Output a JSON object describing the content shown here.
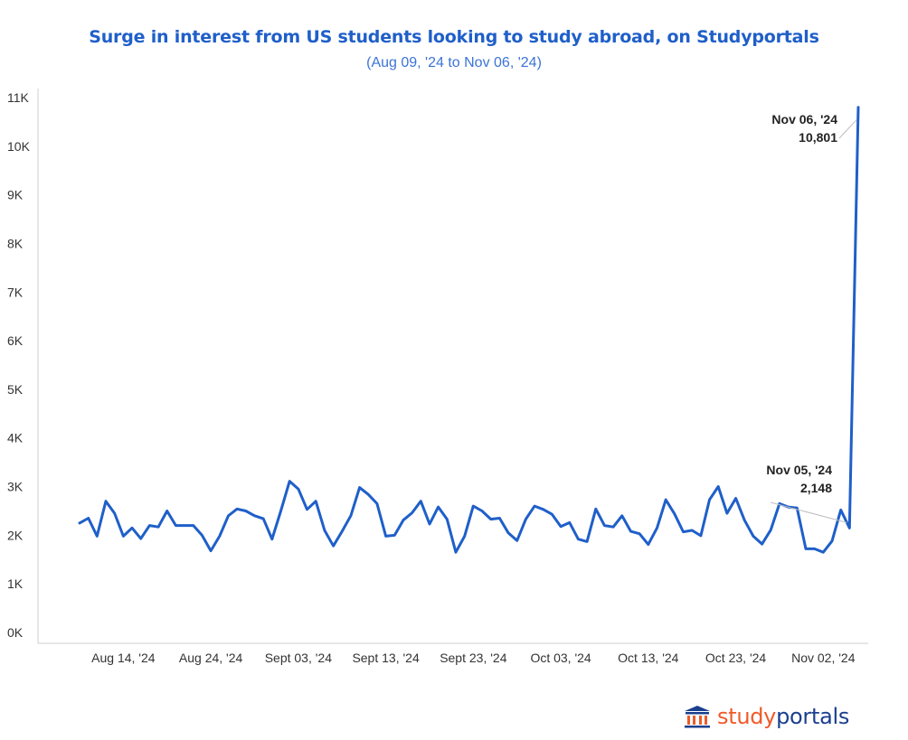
{
  "title": "Surge in interest from US students looking to study abroad, on Studyportals",
  "subtitle": "(Aug 09, '24 to Nov 06, '24)",
  "colors": {
    "title": "#1f5fc9",
    "line": "#1f5fc9",
    "logo_study": "#f05a28",
    "logo_portals": "#1b3f8f"
  },
  "logo": {
    "icon": "building-columns-icon",
    "text_part1": "study",
    "text_part2": "portals"
  },
  "chart_data": {
    "type": "line",
    "title": "Surge in interest from US students looking to study abroad, on Studyportals",
    "subtitle": "(Aug 09, '24 to Nov 06, '24)",
    "x_start": "2024-08-09",
    "x_end": "2024-11-06",
    "ylim": [
      0,
      11000
    ],
    "y_ticks": [
      0,
      1000,
      2000,
      3000,
      4000,
      5000,
      6000,
      7000,
      8000,
      9000,
      10000,
      11000
    ],
    "y_tick_labels": [
      "0K",
      "1K",
      "2K",
      "3K",
      "4K",
      "5K",
      "6K",
      "7K",
      "8K",
      "9K",
      "10K",
      "11K"
    ],
    "x_ticks": [
      {
        "date": "2024-08-14",
        "label": "Aug 14, '24"
      },
      {
        "date": "2024-08-24",
        "label": "Aug 24, '24"
      },
      {
        "date": "2024-09-03",
        "label": "Sept 03, '24"
      },
      {
        "date": "2024-09-13",
        "label": "Sept 13, '24"
      },
      {
        "date": "2024-09-23",
        "label": "Sept 23, '24"
      },
      {
        "date": "2024-10-03",
        "label": "Oct 03, '24"
      },
      {
        "date": "2024-10-13",
        "label": "Oct 13, '24"
      },
      {
        "date": "2024-10-23",
        "label": "Oct 23, '24"
      },
      {
        "date": "2024-11-02",
        "label": "Nov 02, '24"
      }
    ],
    "grid": false,
    "series": [
      {
        "x": [
          "2024-08-09",
          "2024-08-10",
          "2024-08-11",
          "2024-08-12",
          "2024-08-13",
          "2024-08-14",
          "2024-08-15",
          "2024-08-16",
          "2024-08-17",
          "2024-08-18",
          "2024-08-19",
          "2024-08-20",
          "2024-08-21",
          "2024-08-22",
          "2024-08-23",
          "2024-08-24",
          "2024-08-25",
          "2024-08-26",
          "2024-08-27",
          "2024-08-28",
          "2024-08-29",
          "2024-08-30",
          "2024-08-31",
          "2024-09-01",
          "2024-09-02",
          "2024-09-03",
          "2024-09-04",
          "2024-09-05",
          "2024-09-06",
          "2024-09-07",
          "2024-09-08",
          "2024-09-09",
          "2024-09-10",
          "2024-09-11",
          "2024-09-12",
          "2024-09-13",
          "2024-09-14",
          "2024-09-15",
          "2024-09-16",
          "2024-09-17",
          "2024-09-18",
          "2024-09-19",
          "2024-09-20",
          "2024-09-21",
          "2024-09-22",
          "2024-09-23",
          "2024-09-24",
          "2024-09-25",
          "2024-09-26",
          "2024-09-27",
          "2024-09-28",
          "2024-09-29",
          "2024-09-30",
          "2024-10-01",
          "2024-10-02",
          "2024-10-03",
          "2024-10-04",
          "2024-10-05",
          "2024-10-06",
          "2024-10-07",
          "2024-10-08",
          "2024-10-09",
          "2024-10-10",
          "2024-10-11",
          "2024-10-12",
          "2024-10-13",
          "2024-10-14",
          "2024-10-15",
          "2024-10-16",
          "2024-10-17",
          "2024-10-18",
          "2024-10-19",
          "2024-10-20",
          "2024-10-21",
          "2024-10-22",
          "2024-10-23",
          "2024-10-24",
          "2024-10-25",
          "2024-10-26",
          "2024-10-27",
          "2024-10-28",
          "2024-10-29",
          "2024-10-30",
          "2024-10-31",
          "2024-11-01",
          "2024-11-02",
          "2024-11-03",
          "2024-11-04",
          "2024-11-05",
          "2024-11-06"
        ],
        "values": [
          2250,
          2350,
          1980,
          2700,
          2450,
          1980,
          2150,
          1930,
          2200,
          2170,
          2500,
          2200,
          2200,
          2200,
          2000,
          1680,
          1980,
          2400,
          2540,
          2500,
          2400,
          2340,
          1920,
          2500,
          3110,
          2950,
          2530,
          2700,
          2100,
          1780,
          2080,
          2400,
          2980,
          2840,
          2650,
          1980,
          2000,
          2310,
          2460,
          2700,
          2230,
          2580,
          2330,
          1650,
          1980,
          2600,
          2500,
          2330,
          2350,
          2050,
          1890,
          2330,
          2600,
          2530,
          2430,
          2180,
          2260,
          1920,
          1870,
          2540,
          2200,
          2170,
          2400,
          2080,
          2030,
          1810,
          2150,
          2730,
          2440,
          2070,
          2100,
          1990,
          2730,
          3000,
          2450,
          2760,
          2310,
          1980,
          1820,
          2110,
          2650,
          2580,
          2560,
          1720,
          1720,
          1650,
          1880,
          2520,
          2148,
          10801
        ]
      }
    ],
    "annotations": [
      {
        "date": "2024-11-06",
        "line1": "Nov 06, '24",
        "line2": "10,801",
        "value": 10801
      },
      {
        "date": "2024-11-05",
        "line1": "Nov 05, '24",
        "line2": "2,148",
        "value": 2148
      }
    ]
  }
}
